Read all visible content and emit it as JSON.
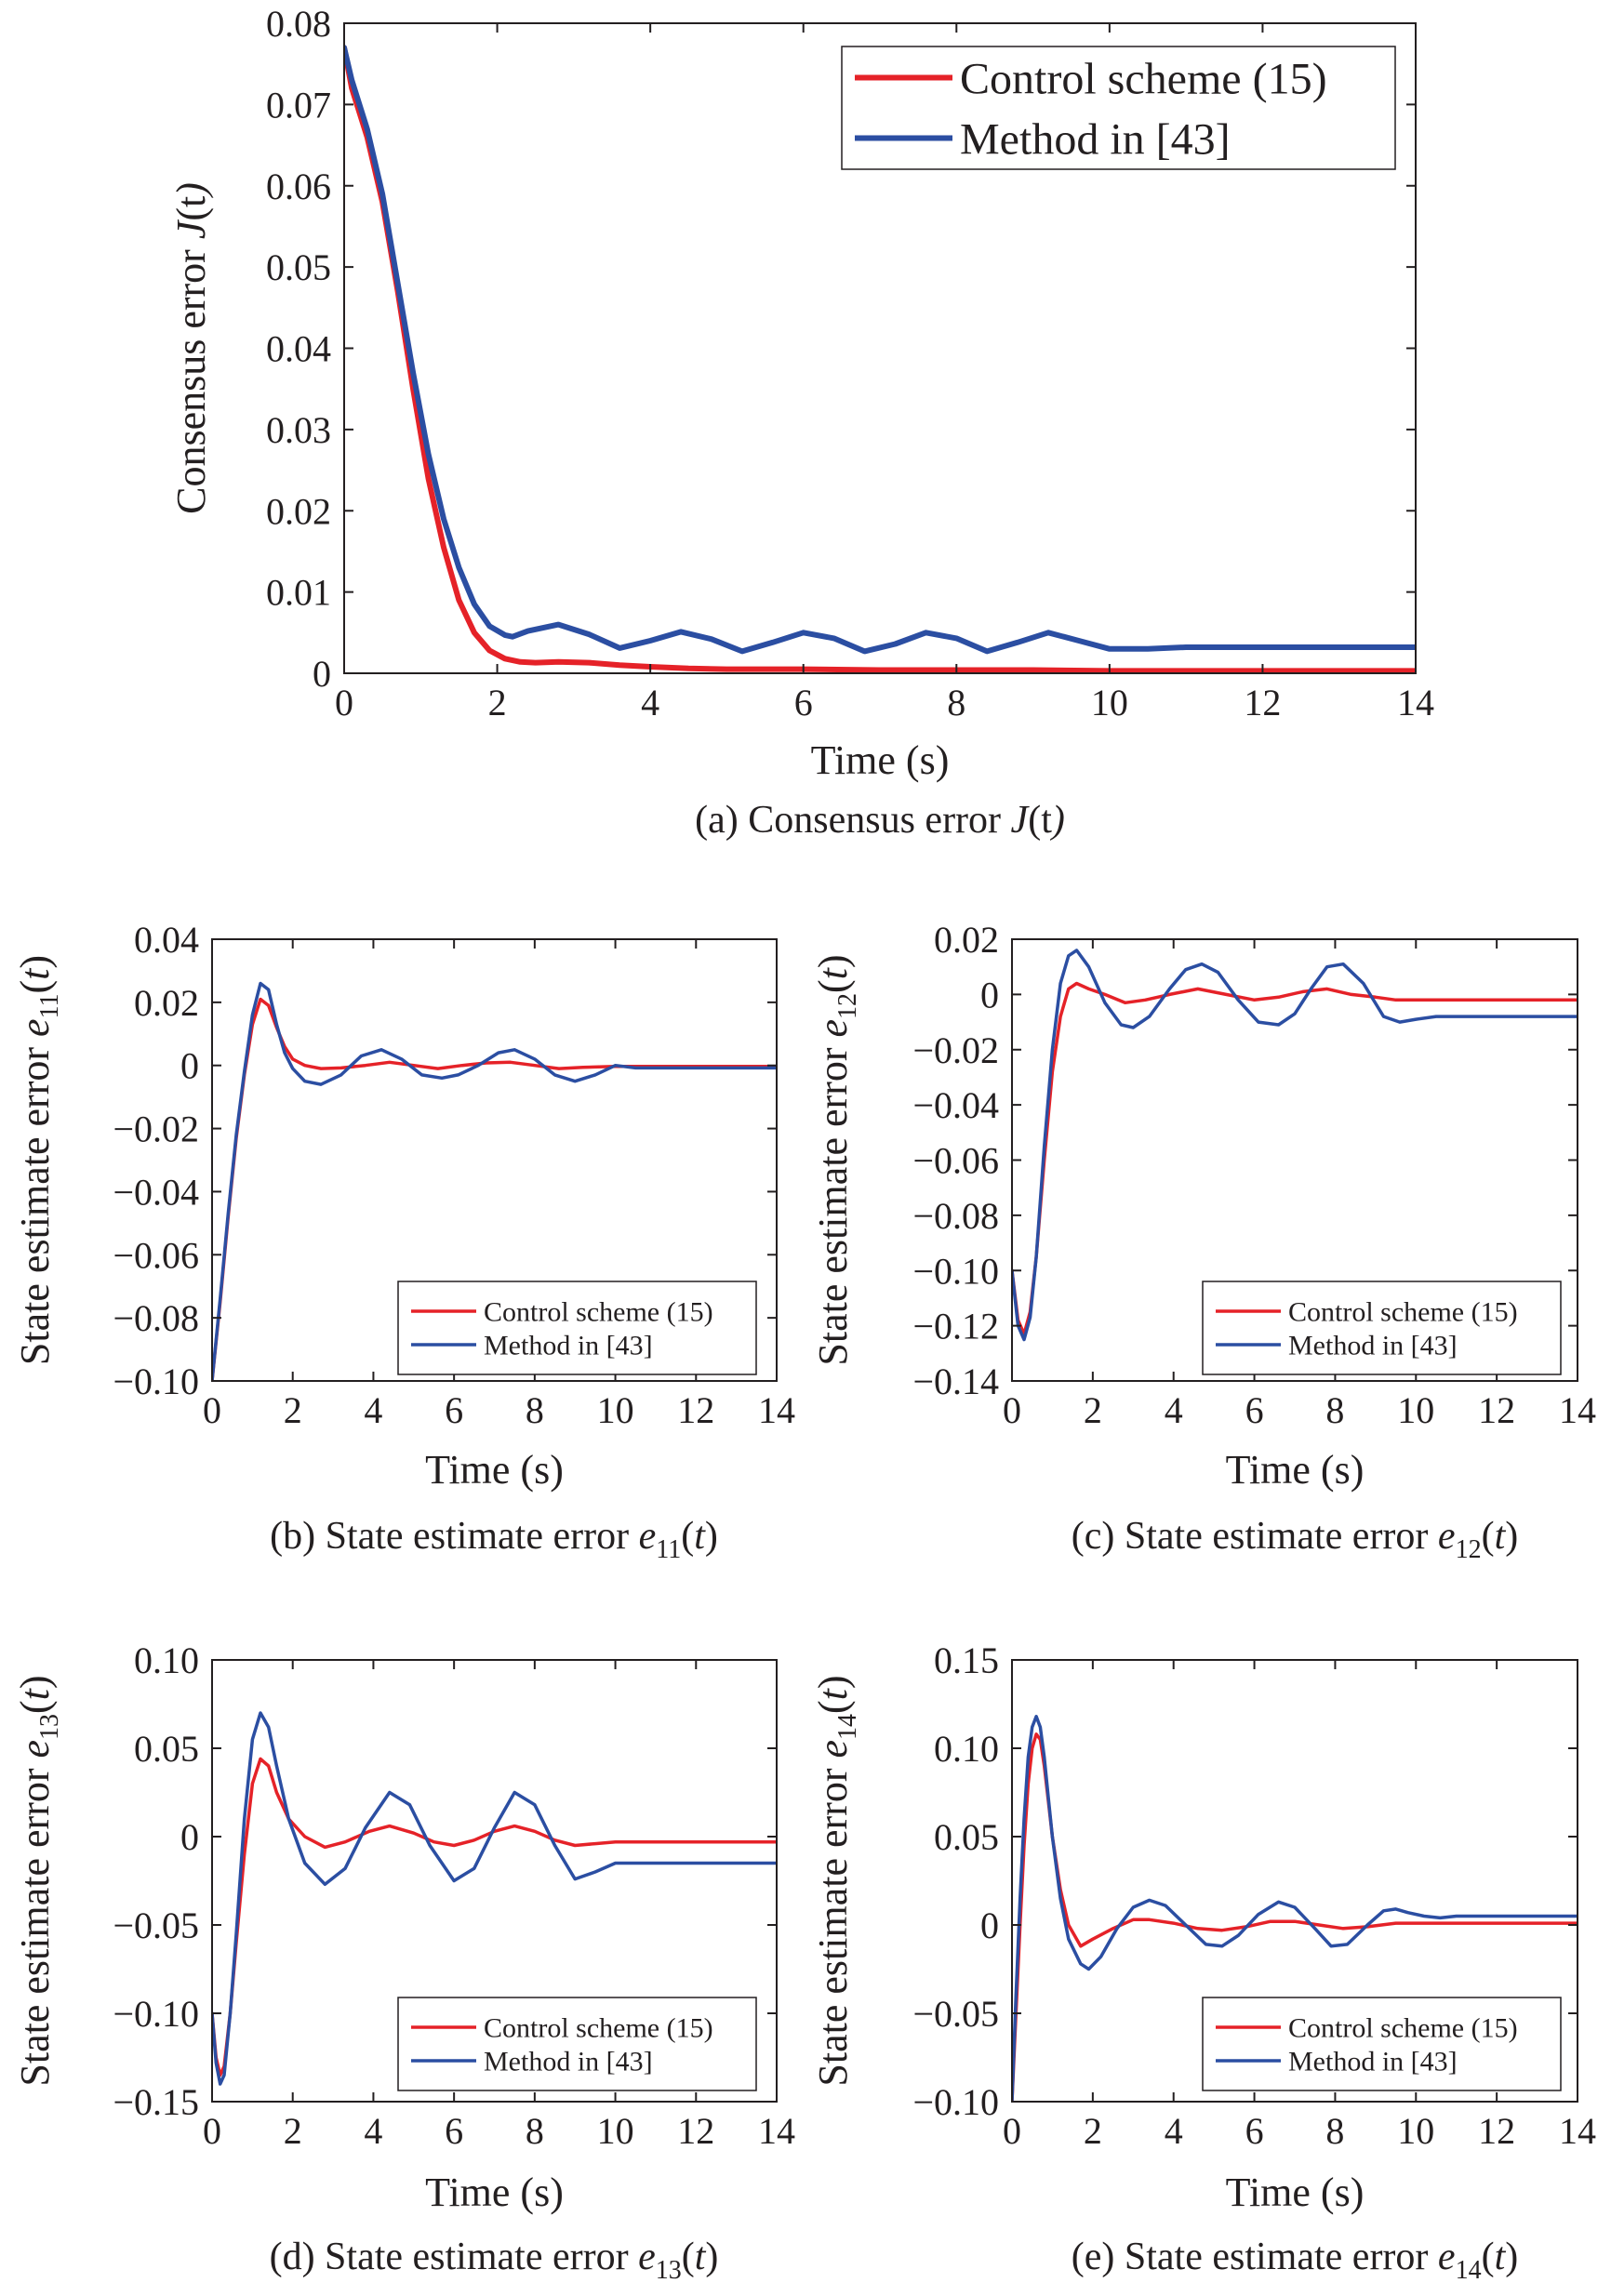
{
  "chart_data": [
    {
      "id": "a",
      "type": "line",
      "caption": "(a) Consensus error J(t)",
      "caption_parts": [
        "(a) Consensus error ",
        "J",
        "(",
        "t",
        ")"
      ],
      "xlabel": "Time (s)",
      "ylabel_parts": [
        "Consensus error ",
        "J",
        "(",
        "t",
        ")"
      ],
      "xlim": [
        0,
        14
      ],
      "ylim": [
        0,
        0.08
      ],
      "xticks": [
        0,
        2,
        4,
        6,
        8,
        10,
        12,
        14
      ],
      "yticks": [
        0,
        0.01,
        0.02,
        0.03,
        0.04,
        0.05,
        0.06,
        0.07,
        0.08
      ],
      "ytick_labels": [
        "0",
        "0.01",
        "0.02",
        "0.03",
        "0.04",
        "0.05",
        "0.06",
        "0.07",
        "0.08"
      ],
      "legend_position": "top-right",
      "series": [
        {
          "name": "Control scheme (15)",
          "color": "#e52228",
          "x": [
            0,
            0.1,
            0.3,
            0.5,
            0.7,
            0.9,
            1.1,
            1.3,
            1.5,
            1.7,
            1.9,
            2.1,
            2.3,
            2.5,
            2.8,
            3.2,
            3.6,
            4,
            4.5,
            5,
            6,
            7,
            8,
            9,
            10,
            11,
            12,
            13,
            14
          ],
          "y": [
            0.077,
            0.072,
            0.066,
            0.058,
            0.047,
            0.035,
            0.024,
            0.0155,
            0.009,
            0.005,
            0.0028,
            0.0018,
            0.0014,
            0.0013,
            0.0014,
            0.0013,
            0.001,
            0.0008,
            0.0006,
            0.0005,
            0.0005,
            0.0004,
            0.0004,
            0.0004,
            0.0003,
            0.0003,
            0.0003,
            0.0003,
            0.0003
          ]
        },
        {
          "name": "Method in [43]",
          "color": "#2b4ea2",
          "x": [
            0,
            0.1,
            0.3,
            0.5,
            0.7,
            0.9,
            1.1,
            1.3,
            1.5,
            1.7,
            1.9,
            2.1,
            2.2,
            2.4,
            2.8,
            3.2,
            3.6,
            4,
            4.4,
            4.8,
            5.2,
            5.6,
            6,
            6.4,
            6.8,
            7.2,
            7.6,
            8,
            8.4,
            8.8,
            9.2,
            9.6,
            10,
            10.5,
            11,
            12,
            13,
            14
          ],
          "y": [
            0.077,
            0.073,
            0.067,
            0.059,
            0.048,
            0.037,
            0.027,
            0.019,
            0.013,
            0.0085,
            0.0058,
            0.0047,
            0.0045,
            0.0052,
            0.006,
            0.0048,
            0.0031,
            0.004,
            0.0051,
            0.0042,
            0.0027,
            0.0038,
            0.005,
            0.0043,
            0.0027,
            0.0036,
            0.005,
            0.0043,
            0.0027,
            0.0038,
            0.005,
            0.004,
            0.003,
            0.003,
            0.0032,
            0.0032,
            0.0032,
            0.0032
          ]
        }
      ]
    },
    {
      "id": "b",
      "type": "line",
      "caption_parts": [
        "(b) State estimate error ",
        "e",
        "11",
        "(",
        "t",
        ")"
      ],
      "xlabel": "Time (s)",
      "ylabel_parts": [
        "State estimate error ",
        "e",
        "11",
        "(",
        "t",
        ")"
      ],
      "xlim": [
        0,
        14
      ],
      "ylim": [
        -0.1,
        0.04
      ],
      "xticks": [
        0,
        2,
        4,
        6,
        8,
        10,
        12,
        14
      ],
      "yticks": [
        -0.1,
        -0.08,
        -0.06,
        -0.04,
        -0.02,
        0,
        0.02,
        0.04
      ],
      "ytick_labels": [
        "−0.10",
        "−0.08",
        "−0.06",
        "−0.04",
        "−0.02",
        "0",
        "0.02",
        "0.04"
      ],
      "legend_position": "bottom-right",
      "series": [
        {
          "name": "Control scheme (15)",
          "color": "#e52228",
          "x": [
            0,
            0.2,
            0.4,
            0.6,
            0.8,
            1.0,
            1.2,
            1.4,
            1.6,
            1.8,
            2.0,
            2.3,
            2.7,
            3.2,
            3.8,
            4.4,
            5.0,
            5.6,
            6.2,
            6.8,
            7.4,
            8.0,
            8.6,
            9.2,
            10,
            11,
            12,
            13,
            14
          ],
          "y": [
            -0.1,
            -0.075,
            -0.048,
            -0.023,
            -0.003,
            0.013,
            0.021,
            0.019,
            0.012,
            0.006,
            0.002,
            0.0,
            -0.001,
            -0.0008,
            0.0,
            0.001,
            0.0,
            -0.001,
            0.0,
            0.0008,
            0.001,
            0.0,
            -0.001,
            -0.0006,
            -0.0003,
            -0.0003,
            -0.0003,
            -0.0003,
            -0.0003
          ]
        },
        {
          "name": "Method in [43]",
          "color": "#2b4ea2",
          "x": [
            0,
            0.2,
            0.4,
            0.6,
            0.8,
            1.0,
            1.2,
            1.4,
            1.6,
            1.8,
            2.0,
            2.3,
            2.7,
            3.2,
            3.7,
            4.2,
            4.7,
            5.2,
            5.7,
            6.1,
            6.6,
            7.1,
            7.5,
            8.0,
            8.5,
            9.0,
            9.5,
            10,
            10.5,
            11,
            12,
            13,
            14
          ],
          "y": [
            -0.1,
            -0.074,
            -0.047,
            -0.022,
            -0.002,
            0.016,
            0.026,
            0.024,
            0.013,
            0.004,
            -0.001,
            -0.005,
            -0.006,
            -0.003,
            0.003,
            0.005,
            0.002,
            -0.003,
            -0.004,
            -0.003,
            0.0,
            0.004,
            0.005,
            0.002,
            -0.003,
            -0.005,
            -0.003,
            0.0,
            -0.0008,
            -0.0008,
            -0.0008,
            -0.0008,
            -0.0008
          ]
        }
      ]
    },
    {
      "id": "c",
      "type": "line",
      "caption_parts": [
        "(c) State estimate error ",
        "e",
        "12",
        "(",
        "t",
        ")"
      ],
      "xlabel": "Time (s)",
      "ylabel_parts": [
        "State estimate error ",
        "e",
        "12",
        "(",
        "t",
        ")"
      ],
      "xlim": [
        0,
        14
      ],
      "ylim": [
        -0.14,
        0.02
      ],
      "xticks": [
        0,
        2,
        4,
        6,
        8,
        10,
        12,
        14
      ],
      "yticks": [
        -0.14,
        -0.12,
        -0.1,
        -0.08,
        -0.06,
        -0.04,
        -0.02,
        0,
        0.02
      ],
      "ytick_labels": [
        "−0.14",
        "−0.12",
        "−0.10",
        "−0.08",
        "−0.06",
        "−0.04",
        "−0.02",
        "0",
        "0.02"
      ],
      "legend_position": "bottom-right",
      "series": [
        {
          "name": "Control scheme (15)",
          "color": "#e52228",
          "x": [
            0,
            0.15,
            0.3,
            0.45,
            0.6,
            0.8,
            1.0,
            1.2,
            1.4,
            1.6,
            1.9,
            2.3,
            2.8,
            3.3,
            3.9,
            4.6,
            5.3,
            6.0,
            6.6,
            7.2,
            7.8,
            8.4,
            9.0,
            9.5,
            10,
            11,
            12,
            13,
            14
          ],
          "y": [
            -0.1,
            -0.118,
            -0.123,
            -0.115,
            -0.095,
            -0.06,
            -0.028,
            -0.008,
            0.002,
            0.004,
            0.002,
            0.0,
            -0.003,
            -0.002,
            0.0,
            0.002,
            0.0,
            -0.002,
            -0.001,
            0.001,
            0.002,
            0.0,
            -0.001,
            -0.002,
            -0.002,
            -0.002,
            -0.002,
            -0.002,
            -0.002
          ]
        },
        {
          "name": "Method in [43]",
          "color": "#2b4ea2",
          "x": [
            0,
            0.15,
            0.3,
            0.45,
            0.6,
            0.8,
            1.0,
            1.2,
            1.4,
            1.6,
            1.9,
            2.3,
            2.7,
            3.0,
            3.4,
            3.9,
            4.3,
            4.7,
            5.1,
            5.6,
            6.1,
            6.6,
            7.0,
            7.4,
            7.8,
            8.2,
            8.7,
            9.2,
            9.6,
            10.0,
            10.5,
            11,
            12,
            13,
            14
          ],
          "y": [
            -0.1,
            -0.12,
            -0.125,
            -0.117,
            -0.095,
            -0.055,
            -0.02,
            0.004,
            0.014,
            0.016,
            0.01,
            -0.003,
            -0.011,
            -0.012,
            -0.008,
            0.002,
            0.009,
            0.011,
            0.008,
            -0.002,
            -0.01,
            -0.011,
            -0.007,
            0.002,
            0.01,
            0.011,
            0.004,
            -0.008,
            -0.01,
            -0.009,
            -0.008,
            -0.008,
            -0.008,
            -0.008,
            -0.008
          ]
        }
      ]
    },
    {
      "id": "d",
      "type": "line",
      "caption_parts": [
        "(d) State estimate error ",
        "e",
        "13",
        "(",
        "t",
        ")"
      ],
      "xlabel": "Time (s)",
      "ylabel_parts": [
        "State estimate error ",
        "e",
        "13",
        "(",
        "t",
        ")"
      ],
      "xlim": [
        0,
        14
      ],
      "ylim": [
        -0.15,
        0.1
      ],
      "xticks": [
        0,
        2,
        4,
        6,
        8,
        10,
        12,
        14
      ],
      "yticks": [
        -0.15,
        -0.1,
        -0.05,
        0,
        0.05,
        0.1
      ],
      "ytick_labels": [
        "−0.15",
        "−0.10",
        "−0.05",
        "0",
        "0.05",
        "0.10"
      ],
      "legend_position": "bottom-right",
      "series": [
        {
          "name": "Control scheme (15)",
          "color": "#e52228",
          "x": [
            0,
            0.1,
            0.2,
            0.3,
            0.45,
            0.6,
            0.8,
            1.0,
            1.2,
            1.4,
            1.6,
            1.9,
            2.3,
            2.8,
            3.3,
            3.9,
            4.4,
            5.0,
            5.5,
            6.0,
            6.5,
            7.0,
            7.5,
            8.0,
            8.5,
            9.0,
            9.5,
            10,
            11,
            12,
            13,
            14
          ],
          "y": [
            -0.1,
            -0.125,
            -0.135,
            -0.13,
            -0.1,
            -0.06,
            -0.01,
            0.03,
            0.044,
            0.04,
            0.025,
            0.01,
            0.0,
            -0.006,
            -0.003,
            0.003,
            0.006,
            0.002,
            -0.003,
            -0.005,
            -0.002,
            0.003,
            0.006,
            0.003,
            -0.002,
            -0.005,
            -0.004,
            -0.003,
            -0.003,
            -0.003,
            -0.003,
            -0.003
          ]
        },
        {
          "name": "Method in [43]",
          "color": "#2b4ea2",
          "x": [
            0,
            0.1,
            0.2,
            0.3,
            0.45,
            0.6,
            0.8,
            1.0,
            1.2,
            1.4,
            1.6,
            1.9,
            2.3,
            2.8,
            3.3,
            3.8,
            4.4,
            4.9,
            5.4,
            6.0,
            6.5,
            7.0,
            7.5,
            8.0,
            8.5,
            9.0,
            9.5,
            10,
            10.5,
            11,
            12,
            13,
            14
          ],
          "y": [
            -0.1,
            -0.128,
            -0.14,
            -0.135,
            -0.1,
            -0.055,
            0.01,
            0.055,
            0.07,
            0.062,
            0.04,
            0.01,
            -0.015,
            -0.027,
            -0.018,
            0.005,
            0.025,
            0.018,
            -0.005,
            -0.025,
            -0.018,
            0.005,
            0.025,
            0.018,
            -0.005,
            -0.024,
            -0.02,
            -0.015,
            -0.015,
            -0.015,
            -0.015,
            -0.015,
            -0.015
          ]
        }
      ]
    },
    {
      "id": "e",
      "type": "line",
      "caption_parts": [
        "(e) State estimate error ",
        "e",
        "14",
        "(",
        "t",
        ")"
      ],
      "xlabel": "Time (s)",
      "ylabel_parts": [
        "State estimate error ",
        "e",
        "14",
        "(",
        "t",
        ")"
      ],
      "xlim": [
        0,
        14
      ],
      "ylim": [
        -0.1,
        0.15
      ],
      "xticks": [
        0,
        2,
        4,
        6,
        8,
        10,
        12,
        14
      ],
      "yticks": [
        -0.1,
        -0.05,
        0,
        0.05,
        0.1,
        0.15
      ],
      "ytick_labels": [
        "−0.10",
        "−0.05",
        "0",
        "0.05",
        "0.10",
        "0.15"
      ],
      "legend_position": "bottom-right",
      "series": [
        {
          "name": "Control scheme (15)",
          "color": "#e52228",
          "x": [
            0,
            0.1,
            0.2,
            0.3,
            0.4,
            0.5,
            0.6,
            0.7,
            0.8,
            0.9,
            1.0,
            1.2,
            1.4,
            1.7,
            2.0,
            2.5,
            3.0,
            3.4,
            4.0,
            4.6,
            5.2,
            5.8,
            6.4,
            7.0,
            7.6,
            8.2,
            8.8,
            9.5,
            10,
            11,
            12,
            13,
            14
          ],
          "y": [
            -0.1,
            -0.05,
            0.0,
            0.045,
            0.08,
            0.1,
            0.108,
            0.105,
            0.09,
            0.07,
            0.05,
            0.02,
            0.0,
            -0.012,
            -0.008,
            -0.002,
            0.003,
            0.003,
            0.001,
            -0.002,
            -0.003,
            -0.001,
            0.002,
            0.002,
            0.0,
            -0.002,
            -0.001,
            0.001,
            0.001,
            0.001,
            0.001,
            0.001,
            0.001
          ]
        },
        {
          "name": "Method in [43]",
          "color": "#2b4ea2",
          "x": [
            0,
            0.1,
            0.2,
            0.3,
            0.4,
            0.5,
            0.6,
            0.7,
            0.8,
            0.9,
            1.0,
            1.2,
            1.4,
            1.7,
            1.9,
            2.2,
            2.6,
            3.0,
            3.4,
            3.8,
            4.3,
            4.8,
            5.2,
            5.6,
            6.1,
            6.6,
            7.0,
            7.5,
            7.9,
            8.3,
            8.8,
            9.2,
            9.5,
            9.8,
            10.2,
            10.6,
            11,
            12,
            13,
            14
          ],
          "y": [
            -0.1,
            -0.04,
            0.015,
            0.06,
            0.095,
            0.112,
            0.118,
            0.112,
            0.095,
            0.072,
            0.05,
            0.015,
            -0.008,
            -0.022,
            -0.025,
            -0.018,
            -0.002,
            0.01,
            0.014,
            0.011,
            0.0,
            -0.011,
            -0.012,
            -0.006,
            0.006,
            0.013,
            0.01,
            -0.002,
            -0.012,
            -0.011,
            0.0,
            0.008,
            0.009,
            0.007,
            0.005,
            0.004,
            0.005,
            0.005,
            0.005,
            0.005
          ]
        }
      ]
    }
  ]
}
